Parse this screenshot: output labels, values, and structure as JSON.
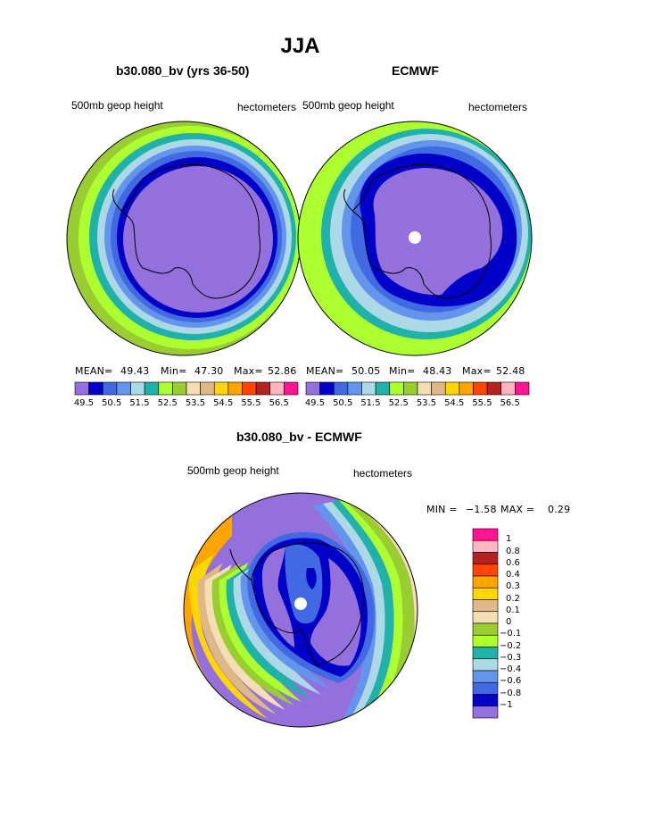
{
  "page": {
    "title": "JJA"
  },
  "chart_data": [
    {
      "type": "heatmap",
      "title": "b30.080_bv (yrs 36-50)",
      "left_label": "500mb geop height",
      "right_label": "hectometers",
      "stats": {
        "mean_label": "MEAN=",
        "mean": "49.43",
        "min_label": "Min=",
        "min": "47.30",
        "max_label": "Max=",
        "max": "52.86"
      },
      "colorbar_levels": [
        "49.5",
        "50.5",
        "51.5",
        "52.5",
        "53.5",
        "54.5",
        "55.5",
        "56.5"
      ],
      "colors": [
        "#9370db",
        "#0000c8",
        "#4169e1",
        "#6495ed",
        "#add8e6",
        "#20b2aa",
        "#adff2f",
        "#9acd32",
        "#f5deb3",
        "#deb887",
        "#ffd700",
        "#ffa500",
        "#ff4500",
        "#b22222",
        "#ffb6c1",
        "#ff1493"
      ]
    },
    {
      "type": "heatmap",
      "title": "ECMWF",
      "left_label": "500mb geop height",
      "right_label": "hectometers",
      "stats": {
        "mean_label": "MEAN=",
        "mean": "50.05",
        "min_label": "Min=",
        "min": "48.43",
        "max_label": "Max=",
        "max": "52.48"
      },
      "colorbar_levels": [
        "49.5",
        "50.5",
        "51.5",
        "52.5",
        "53.5",
        "54.5",
        "55.5",
        "56.5"
      ]
    },
    {
      "type": "heatmap",
      "title": "b30.080_bv - ECMWF",
      "left_label": "500mb geop height",
      "right_label": "hectometers",
      "stats": {
        "min_label": "MIN =",
        "min": "−1.58",
        "max_label": "MAX =",
        "max": "0.29"
      },
      "colorbar_levels": [
        "1",
        "0.8",
        "0.6",
        "0.4",
        "0.3",
        "0.2",
        "0.1",
        "0",
        "−0.1",
        "−0.2",
        "−0.3",
        "−0.4",
        "−0.6",
        "−0.8",
        "−1"
      ],
      "colors_top_to_bottom": [
        "#ff1493",
        "#ffb6c1",
        "#b22222",
        "#ff4500",
        "#ffa500",
        "#ffd700",
        "#deb887",
        "#f5deb3",
        "#9acd32",
        "#adff2f",
        "#20b2aa",
        "#add8e6",
        "#6495ed",
        "#4169e1",
        "#0000c8",
        "#9370db"
      ]
    }
  ]
}
